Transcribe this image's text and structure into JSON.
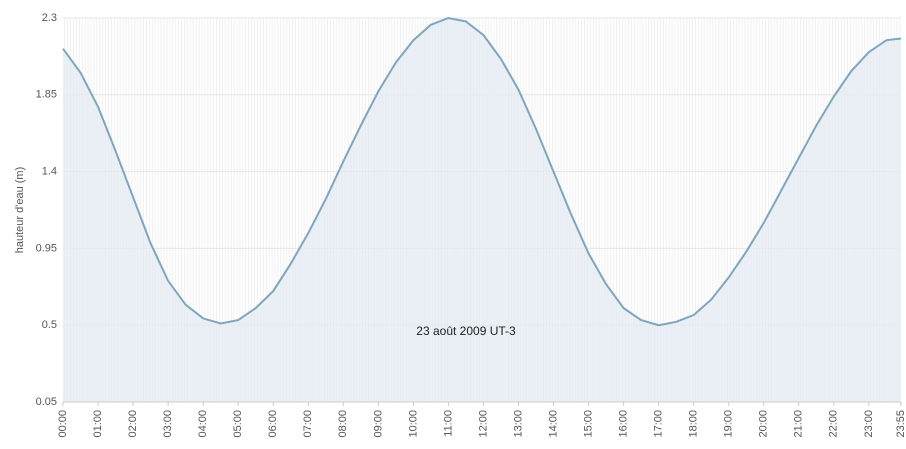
{
  "chart_data": {
    "type": "area",
    "y_label": "hauteur d'eau (m)",
    "annotation": "23 août 2009 UT-3",
    "color": "#7fa6be",
    "fill": "#e3ebf1",
    "x": [
      0,
      30,
      60,
      90,
      120,
      150,
      180,
      210,
      240,
      270,
      300,
      330,
      360,
      390,
      420,
      450,
      480,
      510,
      540,
      570,
      600,
      630,
      660,
      690,
      720,
      750,
      780,
      810,
      840,
      870,
      900,
      930,
      960,
      990,
      1020,
      1050,
      1080,
      1110,
      1140,
      1170,
      1200,
      1230,
      1260,
      1290,
      1320,
      1350,
      1380,
      1410,
      1435
    ],
    "values": [
      2.12,
      1.98,
      1.78,
      1.52,
      1.25,
      0.98,
      0.76,
      0.62,
      0.54,
      0.51,
      0.53,
      0.6,
      0.7,
      0.86,
      1.04,
      1.24,
      1.46,
      1.67,
      1.87,
      2.04,
      2.17,
      2.26,
      2.3,
      2.28,
      2.2,
      2.06,
      1.88,
      1.65,
      1.4,
      1.15,
      0.92,
      0.74,
      0.6,
      0.53,
      0.5,
      0.52,
      0.56,
      0.65,
      0.78,
      0.93,
      1.1,
      1.29,
      1.48,
      1.67,
      1.84,
      1.99,
      2.1,
      2.17,
      2.18
    ],
    "xlim": [
      0,
      1435
    ],
    "xticks": [
      {
        "value": 0,
        "label": "00:00"
      },
      {
        "value": 60,
        "label": "01:00"
      },
      {
        "value": 120,
        "label": "02:00"
      },
      {
        "value": 180,
        "label": "03:00"
      },
      {
        "value": 240,
        "label": "04:00"
      },
      {
        "value": 300,
        "label": "05:00"
      },
      {
        "value": 360,
        "label": "06:00"
      },
      {
        "value": 420,
        "label": "07:00"
      },
      {
        "value": 480,
        "label": "08:00"
      },
      {
        "value": 540,
        "label": "09:00"
      },
      {
        "value": 600,
        "label": "10:00"
      },
      {
        "value": 660,
        "label": "11:00"
      },
      {
        "value": 720,
        "label": "12:00"
      },
      {
        "value": 780,
        "label": "13:00"
      },
      {
        "value": 840,
        "label": "14:00"
      },
      {
        "value": 900,
        "label": "15:00"
      },
      {
        "value": 960,
        "label": "16:00"
      },
      {
        "value": 1020,
        "label": "17:00"
      },
      {
        "value": 1080,
        "label": "18:00"
      },
      {
        "value": 1140,
        "label": "19:00"
      },
      {
        "value": 1200,
        "label": "20:00"
      },
      {
        "value": 1260,
        "label": "21:00"
      },
      {
        "value": 1320,
        "label": "22:00"
      },
      {
        "value": 1380,
        "label": "23:00"
      },
      {
        "value": 1435,
        "label": "23:55"
      }
    ],
    "ylim": [
      0.05,
      2.3
    ],
    "yticks": [
      0.05,
      0.5,
      0.95,
      1.4,
      1.85,
      2.3
    ],
    "grid": true
  }
}
